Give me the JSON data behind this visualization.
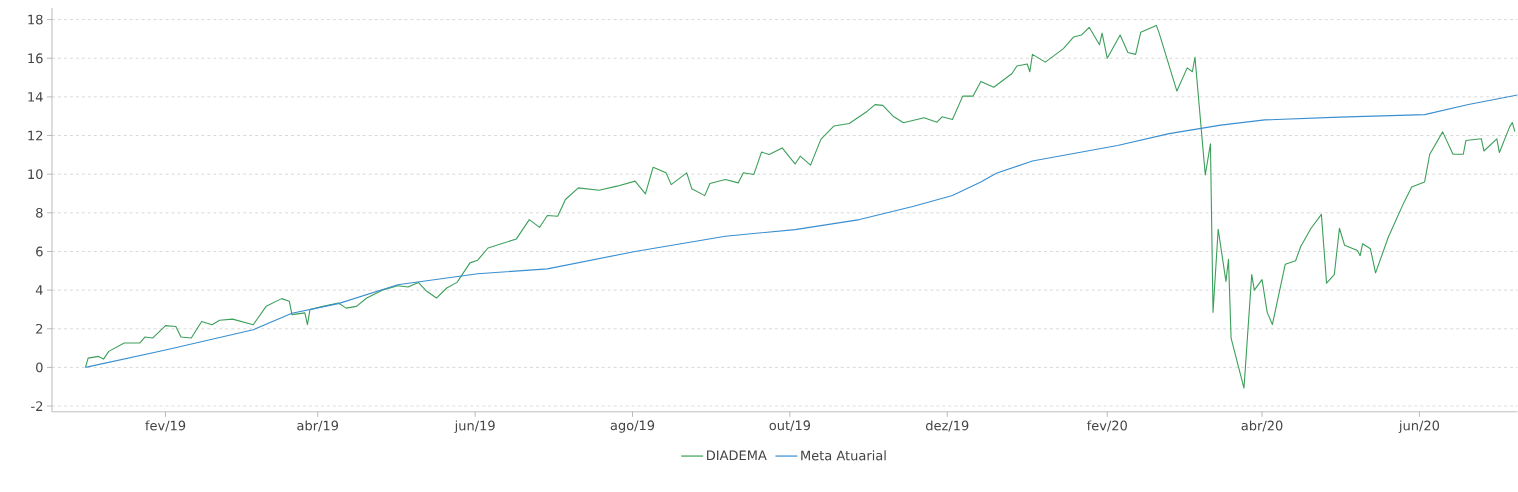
{
  "chart_data": {
    "type": "line",
    "xlim": [
      "2018-12-19",
      "2020-07-09"
    ],
    "ylim": [
      -2.3,
      18.6
    ],
    "xticks": [
      {
        "value": "2019-02-01",
        "label": "fev/19"
      },
      {
        "value": "2019-04-01",
        "label": "abr/19"
      },
      {
        "value": "2019-06-01",
        "label": "jun/19"
      },
      {
        "value": "2019-08-01",
        "label": "ago/19"
      },
      {
        "value": "2019-10-01",
        "label": "out/19"
      },
      {
        "value": "2019-12-01",
        "label": "dez/19"
      },
      {
        "value": "2020-02-01",
        "label": "fev/20"
      },
      {
        "value": "2020-04-01",
        "label": "abr/20"
      },
      {
        "value": "2020-06-01",
        "label": "jun/20"
      }
    ],
    "yticks": [
      -2,
      0,
      2,
      4,
      6,
      8,
      10,
      12,
      14,
      16,
      18
    ],
    "grid": "y",
    "legend": "bottom",
    "series": [
      {
        "name": "DIADEMA",
        "color": "#3c9f5a",
        "x": [
          "2019-01-01",
          "2019-01-02",
          "2019-01-06",
          "2019-01-08",
          "2019-01-10",
          "2019-01-16",
          "2019-01-22",
          "2019-01-24",
          "2019-01-27",
          "2019-02-01",
          "2019-02-05",
          "2019-02-07",
          "2019-02-11",
          "2019-02-15",
          "2019-02-19",
          "2019-02-22",
          "2019-02-27",
          "2019-03-07",
          "2019-03-12",
          "2019-03-18",
          "2019-03-21",
          "2019-03-22",
          "2019-03-27",
          "2019-03-28",
          "2019-03-29",
          "2019-04-03",
          "2019-04-09",
          "2019-04-12",
          "2019-04-16",
          "2019-04-20",
          "2019-04-26",
          "2019-05-02",
          "2019-05-06",
          "2019-05-10",
          "2019-05-13",
          "2019-05-17",
          "2019-05-21",
          "2019-05-25",
          "2019-05-30",
          "2019-06-02",
          "2019-06-06",
          "2019-06-17",
          "2019-06-22",
          "2019-06-26",
          "2019-06-29",
          "2019-07-03",
          "2019-07-06",
          "2019-07-11",
          "2019-07-19",
          "2019-07-26",
          "2019-08-02",
          "2019-08-06",
          "2019-08-09",
          "2019-08-14",
          "2019-08-16",
          "2019-08-22",
          "2019-08-24",
          "2019-08-29",
          "2019-08-31",
          "2019-09-06",
          "2019-09-11",
          "2019-09-13",
          "2019-09-17",
          "2019-09-20",
          "2019-09-23",
          "2019-09-28",
          "2019-10-03",
          "2019-10-05",
          "2019-10-09",
          "2019-10-13",
          "2019-10-18",
          "2019-10-24",
          "2019-10-31",
          "2019-11-03",
          "2019-11-06",
          "2019-11-10",
          "2019-11-14",
          "2019-11-22",
          "2019-11-27",
          "2019-11-29",
          "2019-12-03",
          "2019-12-07",
          "2019-12-11",
          "2019-12-14",
          "2019-12-19",
          "2019-12-26",
          "2019-12-28",
          "2020-01-01",
          "2020-01-02",
          "2020-01-03",
          "2020-01-08",
          "2020-01-15",
          "2020-01-19",
          "2020-01-22",
          "2020-01-25",
          "2020-01-29",
          "2020-01-30",
          "2020-02-01",
          "2020-02-06",
          "2020-02-09",
          "2020-02-12",
          "2020-02-14",
          "2020-02-20",
          "2020-02-21",
          "2020-02-28",
          "2020-03-03",
          "2020-03-05",
          "2020-03-06",
          "2020-03-10",
          "2020-03-12",
          "2020-03-13",
          "2020-03-15",
          "2020-03-18",
          "2020-03-19",
          "2020-03-20",
          "2020-03-25",
          "2020-03-28",
          "2020-03-29",
          "2020-04-01",
          "2020-04-03",
          "2020-04-05",
          "2020-04-10",
          "2020-04-14",
          "2020-04-16",
          "2020-04-20",
          "2020-04-24",
          "2020-04-26",
          "2020-04-29",
          "2020-05-01",
          "2020-05-03",
          "2020-05-08",
          "2020-05-09",
          "2020-05-10",
          "2020-05-13",
          "2020-05-15",
          "2020-05-20",
          "2020-05-26",
          "2020-05-29",
          "2020-06-03",
          "2020-06-05",
          "2020-06-10",
          "2020-06-14",
          "2020-06-18",
          "2020-06-19",
          "2020-06-25",
          "2020-06-26",
          "2020-07-01",
          "2020-07-02",
          "2020-07-06",
          "2020-07-07",
          "2020-07-08"
        ],
        "values": [
          0,
          0.48,
          0.57,
          0.43,
          0.83,
          1.26,
          1.26,
          1.57,
          1.52,
          2.16,
          2.12,
          1.57,
          1.52,
          2.38,
          2.21,
          2.44,
          2.5,
          2.21,
          3.16,
          3.56,
          3.42,
          2.73,
          2.82,
          2.21,
          2.99,
          3.16,
          3.33,
          3.07,
          3.16,
          3.59,
          3.99,
          4.23,
          4.16,
          4.4,
          3.97,
          3.59,
          4.11,
          4.4,
          5.41,
          5.55,
          6.18,
          6.65,
          7.65,
          7.25,
          7.86,
          7.82,
          8.69,
          9.29,
          9.17,
          9.38,
          9.64,
          8.98,
          10.36,
          10.07,
          9.46,
          10.07,
          9.24,
          8.89,
          9.52,
          9.72,
          9.55,
          10.07,
          9.98,
          11.14,
          11.02,
          11.36,
          10.53,
          10.93,
          10.47,
          11.8,
          12.49,
          12.62,
          13.26,
          13.6,
          13.56,
          13.0,
          12.66,
          12.92,
          12.69,
          12.97,
          12.83,
          14.04,
          14.04,
          14.8,
          14.5,
          15.2,
          15.6,
          15.7,
          15.3,
          16.2,
          15.8,
          16.5,
          17.1,
          17.2,
          17.6,
          16.7,
          17.3,
          16.0,
          17.2,
          16.3,
          16.2,
          17.35,
          17.7,
          17.35,
          14.3,
          15.5,
          15.3,
          16.05,
          9.96,
          11.57,
          2.85,
          7.15,
          4.45,
          5.6,
          1.51,
          -1.07,
          4.8,
          4.0,
          4.54,
          2.85,
          2.22,
          5.34,
          5.52,
          6.26,
          7.2,
          7.92,
          4.36,
          4.8,
          7.2,
          6.32,
          6.05,
          5.78,
          6.4,
          6.14,
          4.89,
          6.76,
          8.54,
          9.34,
          9.6,
          11.03,
          12.19,
          11.03,
          11.03,
          11.74,
          11.83,
          11.2,
          11.83,
          11.12,
          12.46,
          12.67,
          12.2
        ]
      },
      {
        "name": "Meta Atuarial",
        "color": "#3a8fd0",
        "x": [
          "2019-01-01",
          "2019-02-01",
          "2019-03-07",
          "2019-03-22",
          "2019-04-09",
          "2019-05-02",
          "2019-06-02",
          "2019-06-29",
          "2019-08-02",
          "2019-09-06",
          "2019-10-03",
          "2019-10-28",
          "2019-11-18",
          "2019-12-03",
          "2019-12-14",
          "2019-12-20",
          "2020-01-03",
          "2020-02-05",
          "2020-02-25",
          "2020-03-16",
          "2020-04-02",
          "2020-05-01",
          "2020-06-03",
          "2020-06-20",
          "2020-07-09"
        ],
        "values": [
          0,
          0.9,
          1.95,
          2.8,
          3.3,
          4.28,
          4.85,
          5.1,
          6.0,
          6.79,
          7.13,
          7.65,
          8.34,
          8.9,
          9.6,
          10.05,
          10.68,
          11.48,
          12.1,
          12.54,
          12.81,
          12.95,
          13.08,
          13.61,
          14.1
        ]
      }
    ]
  }
}
